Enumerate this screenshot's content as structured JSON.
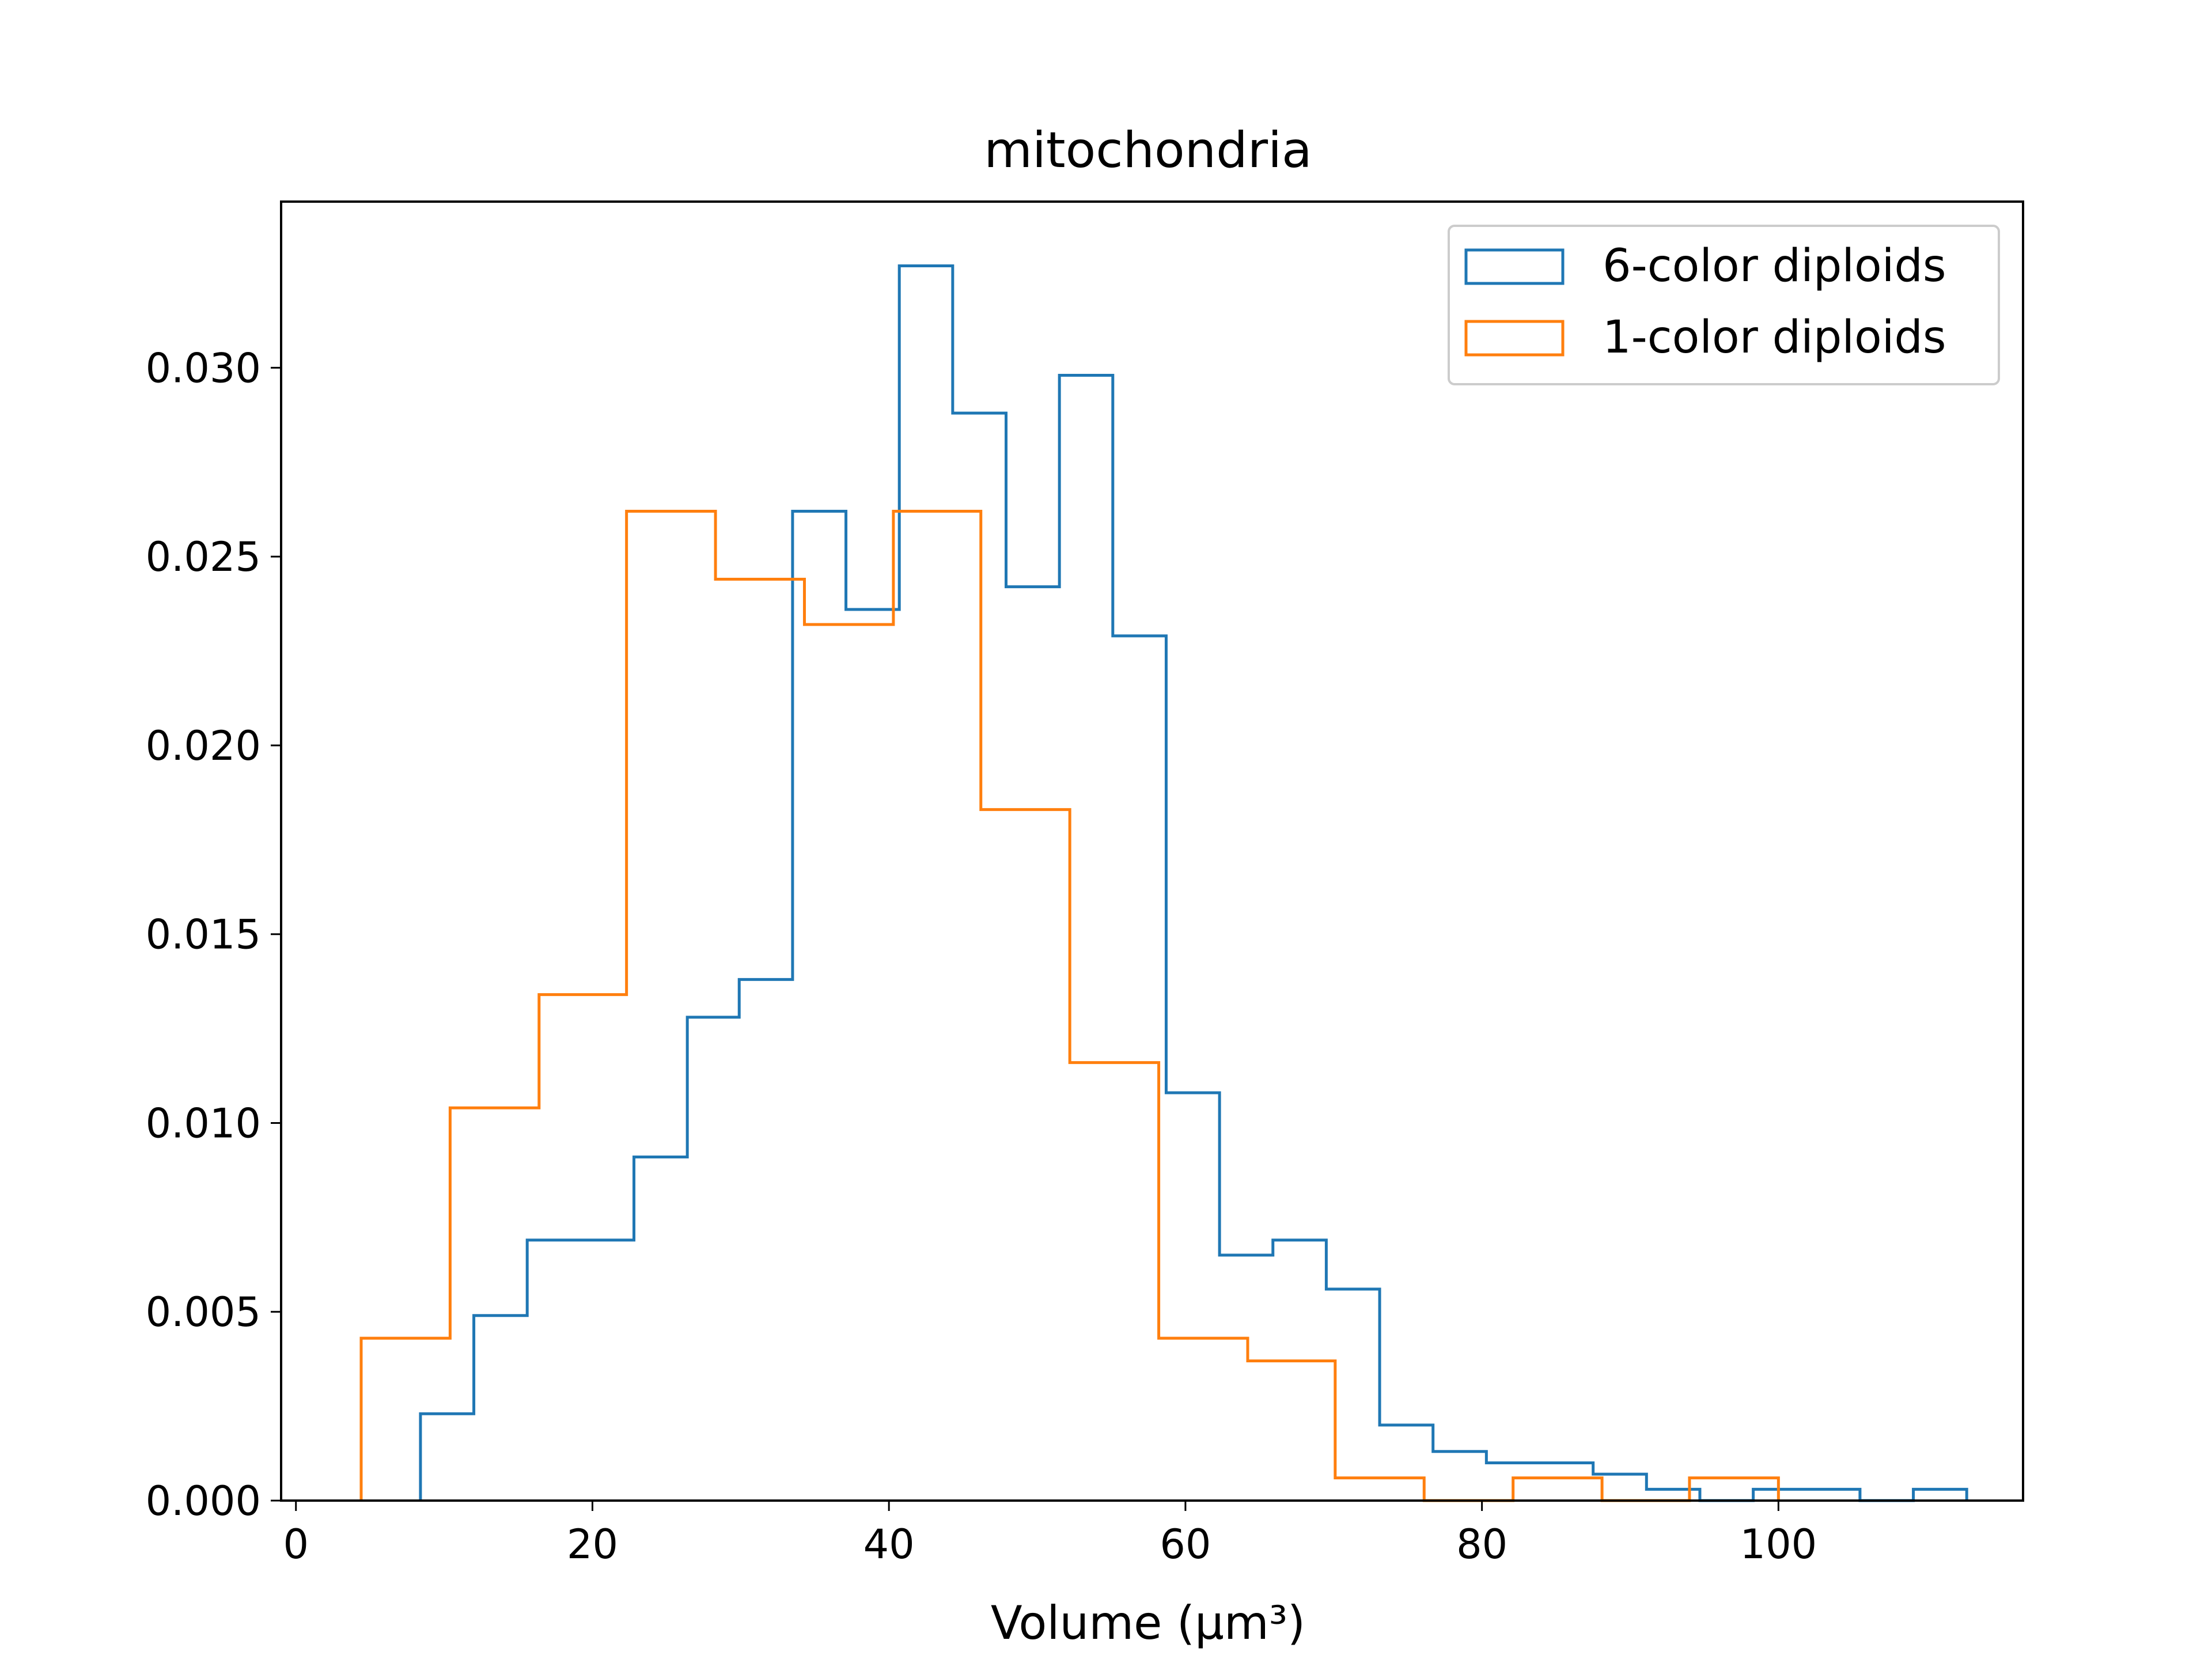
{
  "chart_data": {
    "type": "histogram",
    "title": "mitochondria",
    "xlabel": "Volume (μm³)",
    "ylabel": "",
    "xlim": [
      -1,
      116.5
    ],
    "ylim": [
      0,
      0.0344
    ],
    "grid": false,
    "legend_position": "top-right",
    "x_ticks": [
      0,
      20,
      40,
      60,
      80,
      100
    ],
    "x_tick_labels": [
      "0",
      "20",
      "40",
      "60",
      "80",
      "100"
    ],
    "y_ticks": [
      0,
      0.005,
      0.01,
      0.015,
      0.02,
      0.025,
      0.03
    ],
    "y_tick_labels": [
      "0.000",
      "0.005",
      "0.010",
      "0.015",
      "0.020",
      "0.025",
      "0.030"
    ],
    "series": [
      {
        "name": "6-color diploids",
        "color": "#1f77b4",
        "bin_edges": [
          8.4,
          12.0,
          15.6,
          19.2,
          22.8,
          26.4,
          29.9,
          33.5,
          37.1,
          40.7,
          44.3,
          47.9,
          51.5,
          55.1,
          58.7,
          62.3,
          65.9,
          69.5,
          73.1,
          76.7,
          80.3,
          83.9,
          87.5,
          91.1,
          94.7,
          98.3,
          101.9,
          105.5,
          109.1,
          112.7
        ],
        "values": [
          0.0023,
          0.0049,
          0.0069,
          0.0069,
          0.0091,
          0.0128,
          0.0138,
          0.0262,
          0.0236,
          0.0327,
          0.0288,
          0.0242,
          0.0298,
          0.0229,
          0.0108,
          0.0065,
          0.0069,
          0.0056,
          0.002,
          0.0013,
          0.001,
          0.001,
          0.0007,
          0.0003,
          0.0,
          0.0003,
          0.0003,
          0.0,
          0.0003
        ]
      },
      {
        "name": "1-color diploids",
        "color": "#ff7f0e",
        "bin_edges": [
          4.4,
          10.4,
          16.4,
          22.3,
          28.3,
          34.3,
          40.3,
          46.2,
          52.2,
          58.2,
          64.2,
          70.1,
          76.1,
          82.1,
          88.1,
          94.0,
          100.0
        ],
        "values": [
          0.0043,
          0.0104,
          0.0134,
          0.0262,
          0.0244,
          0.0232,
          0.0262,
          0.0183,
          0.0116,
          0.0043,
          0.0037,
          0.0006,
          0.0,
          0.0006,
          0.0,
          0.0006
        ]
      }
    ]
  }
}
